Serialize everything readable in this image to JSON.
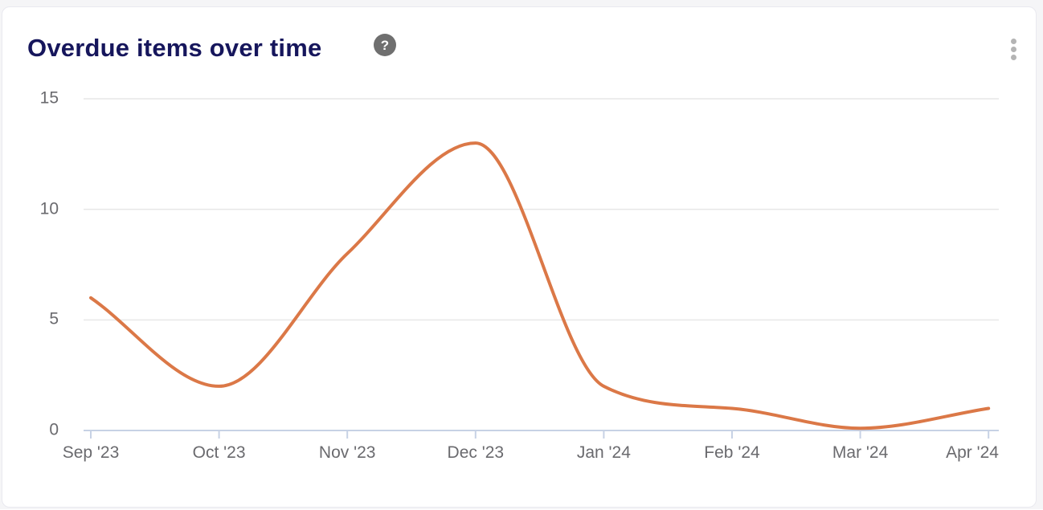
{
  "card": {
    "title": "Overdue items over time",
    "help_icon_glyph": "?",
    "menu_icon": "kebab-vertical-icon"
  },
  "colors": {
    "title": "#16165c",
    "line": "#db7847",
    "axis_line": "#c7d2e5",
    "gridline": "#e7e7e7",
    "tick_label": "#6a6a6e",
    "help_icon_bg": "#6f6f6f",
    "menu_dots": "#b4b4b4",
    "card_bg": "#ffffff",
    "page_bg": "#f5f5f7"
  },
  "chart_data": {
    "type": "line",
    "style": "smooth-spline",
    "title": "Overdue items over time",
    "categories": [
      "Sep '23",
      "Oct '23",
      "Nov '23",
      "Dec '23",
      "Jan '24",
      "Feb '24",
      "Mar '24",
      "Apr '24"
    ],
    "series": [
      {
        "name": "Overdue items",
        "values": [
          6,
          2,
          8,
          13,
          2,
          1,
          0.1,
          1
        ]
      }
    ],
    "xlabel": "",
    "ylabel": "",
    "ylim": [
      0,
      15
    ],
    "yticks": [
      0,
      5,
      10,
      15
    ],
    "grid": "horizontal",
    "legend": "none",
    "line_color": "#db7847"
  }
}
